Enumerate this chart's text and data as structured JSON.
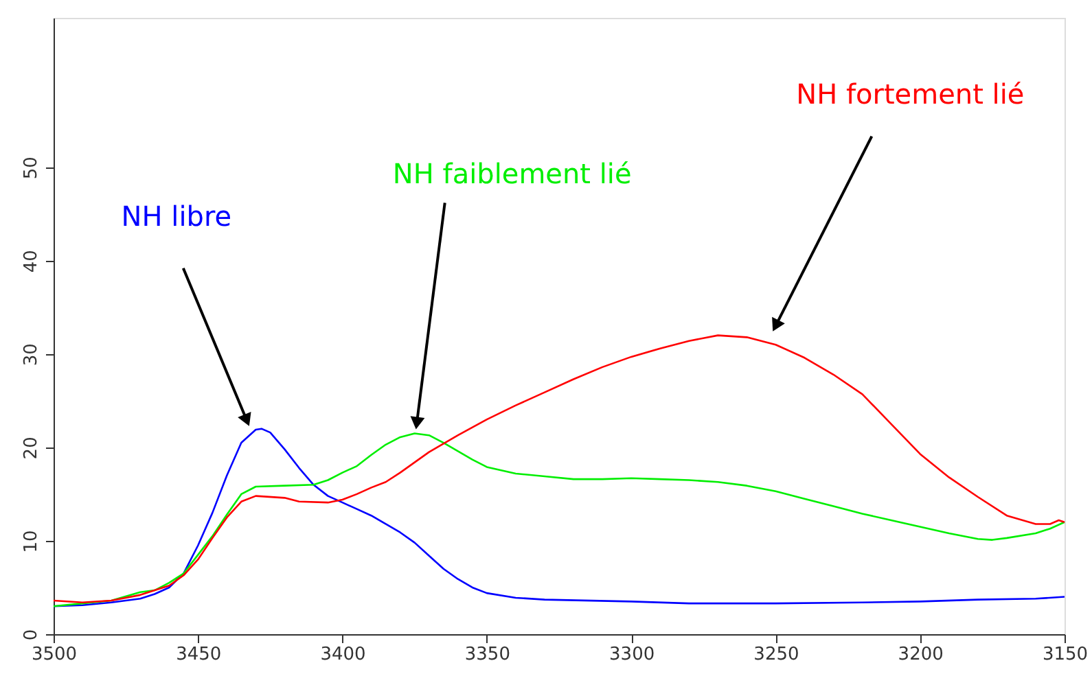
{
  "chart_data": {
    "type": "line",
    "xlim": [
      3500,
      3150
    ],
    "xticks": [
      3500,
      3450,
      3400,
      3350,
      3300,
      3250,
      3200,
      3150
    ],
    "ylim": [
      0,
      66
    ],
    "yticks": [
      0,
      10,
      20,
      30,
      40,
      50
    ],
    "grid": false,
    "marker": "none",
    "line_style": "solid",
    "series": [
      {
        "name": "NH libre",
        "color": "#0000ff",
        "x": [
          3500,
          3490,
          3480,
          3470,
          3465,
          3460,
          3455,
          3450,
          3445,
          3440,
          3435,
          3430,
          3428,
          3425,
          3420,
          3415,
          3410,
          3405,
          3400,
          3395,
          3390,
          3385,
          3380,
          3375,
          3370,
          3365,
          3360,
          3355,
          3350,
          3340,
          3330,
          3300,
          3280,
          3250,
          3220,
          3200,
          3180,
          3160,
          3150
        ],
        "values": [
          3.0,
          3.1,
          3.4,
          3.8,
          4.3,
          5.0,
          6.5,
          9.5,
          13.0,
          17.0,
          20.5,
          21.9,
          22.0,
          21.6,
          19.8,
          17.8,
          16.0,
          14.8,
          14.1,
          13.4,
          12.7,
          11.8,
          10.9,
          9.8,
          8.4,
          7.0,
          5.9,
          5.0,
          4.4,
          3.9,
          3.7,
          3.5,
          3.3,
          3.3,
          3.4,
          3.5,
          3.7,
          3.8,
          4.0
        ]
      },
      {
        "name": "NH faiblement lié",
        "color": "#00ee00",
        "x": [
          3500,
          3490,
          3480,
          3470,
          3465,
          3460,
          3455,
          3450,
          3445,
          3440,
          3435,
          3430,
          3420,
          3410,
          3405,
          3400,
          3395,
          3390,
          3385,
          3380,
          3375,
          3370,
          3365,
          3360,
          3355,
          3350,
          3340,
          3330,
          3320,
          3310,
          3300,
          3290,
          3280,
          3270,
          3260,
          3250,
          3240,
          3230,
          3220,
          3210,
          3200,
          3190,
          3180,
          3175,
          3170,
          3160,
          3155,
          3150
        ],
        "values": [
          3.0,
          3.3,
          3.6,
          4.5,
          4.7,
          5.5,
          6.5,
          8.5,
          10.5,
          12.8,
          15.0,
          15.8,
          15.9,
          16.0,
          16.5,
          17.3,
          18.0,
          19.2,
          20.3,
          21.1,
          21.5,
          21.3,
          20.5,
          19.6,
          18.7,
          17.9,
          17.2,
          16.9,
          16.6,
          16.6,
          16.7,
          16.6,
          16.5,
          16.3,
          15.9,
          15.3,
          14.5,
          13.7,
          12.9,
          12.2,
          11.5,
          10.8,
          10.2,
          10.1,
          10.3,
          10.8,
          11.3,
          12.0
        ]
      },
      {
        "name": "NH fortement lié",
        "color": "#ff0000",
        "x": [
          3500,
          3490,
          3480,
          3470,
          3460,
          3455,
          3450,
          3445,
          3440,
          3435,
          3430,
          3420,
          3415,
          3405,
          3400,
          3395,
          3390,
          3385,
          3380,
          3375,
          3370,
          3365,
          3360,
          3350,
          3340,
          3330,
          3320,
          3310,
          3300,
          3290,
          3280,
          3270,
          3260,
          3250,
          3240,
          3230,
          3220,
          3210,
          3200,
          3190,
          3180,
          3170,
          3160,
          3155,
          3152,
          3150
        ],
        "values": [
          3.6,
          3.4,
          3.6,
          4.2,
          5.2,
          6.3,
          8.0,
          10.3,
          12.5,
          14.2,
          14.8,
          14.6,
          14.2,
          14.1,
          14.4,
          15.0,
          15.7,
          16.3,
          17.3,
          18.4,
          19.5,
          20.4,
          21.3,
          23.0,
          24.5,
          25.9,
          27.3,
          28.6,
          29.7,
          30.6,
          31.4,
          32.0,
          31.8,
          31.0,
          29.6,
          27.8,
          25.7,
          22.5,
          19.3,
          16.8,
          14.7,
          12.7,
          11.8,
          11.8,
          12.2,
          12.0
        ]
      }
    ]
  }
}
